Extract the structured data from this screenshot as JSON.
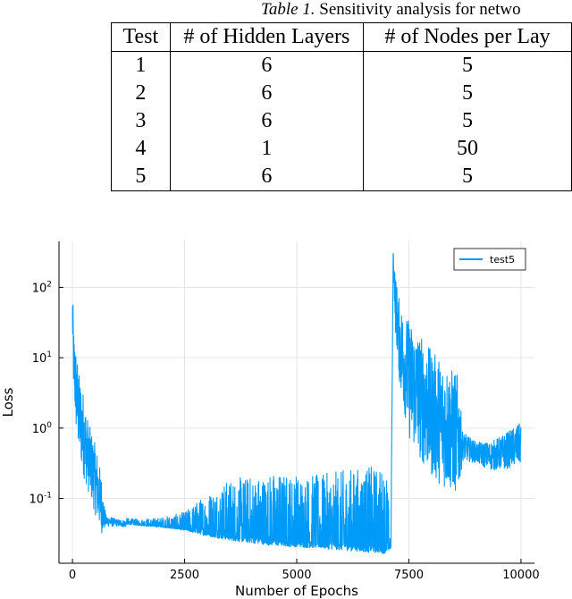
{
  "table": {
    "caption_label": "Table 1.",
    "caption_text": "Sensitivity analysis for netwo",
    "headers": [
      "Test",
      "# of Hidden Layers",
      "# of Nodes per Lay"
    ],
    "rows": [
      [
        "1",
        "6",
        "5"
      ],
      [
        "2",
        "6",
        "5"
      ],
      [
        "3",
        "6",
        "5"
      ],
      [
        "4",
        "1",
        "50"
      ],
      [
        "5",
        "6",
        "5"
      ]
    ]
  },
  "chart_data": {
    "type": "line",
    "xlabel": "Number of Epochs",
    "ylabel": "Loss",
    "xlim": [
      -300,
      10300
    ],
    "ylim": [
      0.012,
      450
    ],
    "yscale": "log",
    "grid": true,
    "legend": "top-right",
    "x_ticks": [
      0,
      2500,
      5000,
      7500,
      10000
    ],
    "x_tick_labels": [
      "0",
      "2500",
      "5000",
      "7500",
      "10000"
    ],
    "y_ticks": [
      0.1,
      1,
      10,
      100
    ],
    "y_tick_labels": [
      {
        "base": "10",
        "exp": "-1"
      },
      {
        "base": "10",
        "exp": "0"
      },
      {
        "base": "10",
        "exp": "1"
      },
      {
        "base": "10",
        "exp": "2"
      }
    ],
    "series": [
      {
        "name": "test5",
        "color": "#009af9",
        "x": [
          0,
          30,
          80,
          150,
          250,
          350,
          450,
          550,
          650,
          700,
          750,
          1000,
          1500,
          2000,
          2500,
          3000,
          3500,
          4000,
          4500,
          5000,
          5500,
          6000,
          6500,
          7000,
          7100,
          7150,
          7200,
          7300,
          7500,
          7800,
          8000,
          8300,
          8600,
          8700,
          9000,
          9300,
          9600,
          10000
        ],
        "y": [
          40,
          8,
          3.5,
          1.5,
          0.8,
          0.4,
          0.25,
          0.15,
          0.08,
          0.055,
          0.048,
          0.045,
          0.042,
          0.04,
          0.037,
          0.033,
          0.03,
          0.028,
          0.026,
          0.025,
          0.024,
          0.023,
          0.022,
          0.021,
          0.02,
          280,
          60,
          15,
          5,
          2.5,
          1.6,
          1.1,
          0.8,
          0.55,
          0.45,
          0.4,
          0.45,
          0.6
        ],
        "noise": [
          0.4,
          0.5,
          0.6,
          0.6,
          0.6,
          0.5,
          0.5,
          0.5,
          0.4,
          0.2,
          0.08,
          0.05,
          0.05,
          0.08,
          0.15,
          0.35,
          0.5,
          0.55,
          0.6,
          0.6,
          0.6,
          0.65,
          0.7,
          0.7,
          0.05,
          0.1,
          0.4,
          0.6,
          0.85,
          0.9,
          0.9,
          0.9,
          0.85,
          0.2,
          0.15,
          0.2,
          0.25,
          0.3
        ]
      }
    ]
  }
}
